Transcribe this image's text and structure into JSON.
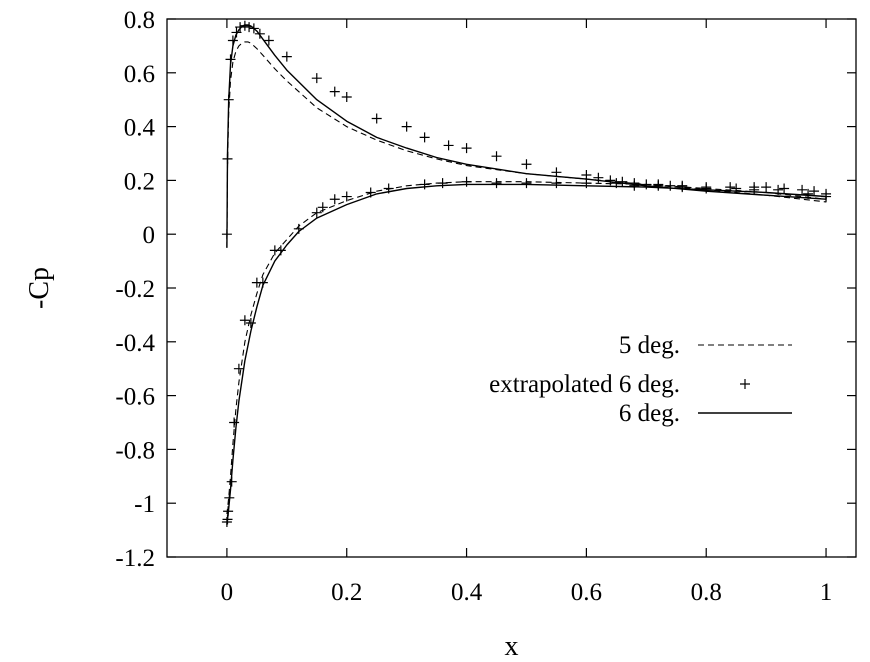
{
  "chart_data": {
    "type": "line",
    "title": "",
    "xlabel": "x",
    "ylabel": "-Cp",
    "xlim": [
      -0.1,
      1.05
    ],
    "ylim": [
      -1.2,
      0.8
    ],
    "xticks": [
      0,
      0.2,
      0.4,
      0.6,
      0.8,
      1
    ],
    "xtick_labels": [
      "0",
      "0.2",
      "0.4",
      "0.6",
      "0.8",
      "1"
    ],
    "yticks": [
      -1.2,
      -1,
      -0.8,
      -0.6,
      -0.4,
      -0.2,
      0,
      0.2,
      0.4,
      0.6,
      0.8
    ],
    "ytick_labels": [
      "-1.2",
      "-1",
      "-0.8",
      "-0.6",
      "-0.4",
      "-0.2",
      "0",
      "0.2",
      "0.4",
      "0.6",
      "0.8"
    ],
    "grid": false,
    "legend_position": "center-right",
    "series": [
      {
        "name": "5 deg.",
        "style": "dashed",
        "x": [
          0.0,
          0.001,
          0.003,
          0.006,
          0.01,
          0.015,
          0.02,
          0.025,
          0.03,
          0.035,
          0.04,
          0.05,
          0.06,
          0.08,
          0.1,
          0.15,
          0.2,
          0.25,
          0.3,
          0.35,
          0.4,
          0.5,
          0.6,
          0.7,
          0.8,
          0.9,
          1.0,
          1.0,
          0.9,
          0.8,
          0.7,
          0.6,
          0.5,
          0.4,
          0.35,
          0.3,
          0.25,
          0.2,
          0.15,
          0.12,
          0.1,
          0.08,
          0.06,
          0.05,
          0.04,
          0.03,
          0.02,
          0.015,
          0.01,
          0.006,
          0.003,
          0.001,
          0.0
        ],
        "y": [
          -0.05,
          0.25,
          0.45,
          0.57,
          0.64,
          0.68,
          0.7,
          0.71,
          0.715,
          0.715,
          0.71,
          0.69,
          0.665,
          0.615,
          0.57,
          0.47,
          0.4,
          0.35,
          0.31,
          0.28,
          0.255,
          0.225,
          0.205,
          0.185,
          0.165,
          0.145,
          0.12,
          0.13,
          0.155,
          0.17,
          0.185,
          0.19,
          0.195,
          0.195,
          0.19,
          0.18,
          0.16,
          0.125,
          0.08,
          0.03,
          -0.02,
          -0.07,
          -0.15,
          -0.22,
          -0.3,
          -0.4,
          -0.55,
          -0.65,
          -0.78,
          -0.9,
          -0.98,
          -1.02,
          -1.04
        ]
      },
      {
        "name": "extrapolated 6 deg.",
        "style": "points",
        "x": [
          0.0,
          0.001,
          0.003,
          0.006,
          0.01,
          0.016,
          0.022,
          0.03,
          0.037,
          0.045,
          0.055,
          0.07,
          0.1,
          0.15,
          0.18,
          0.2,
          0.25,
          0.3,
          0.33,
          0.37,
          0.4,
          0.45,
          0.5,
          0.55,
          0.6,
          0.62,
          0.64,
          0.66,
          0.68,
          0.7,
          0.72,
          0.74,
          0.76,
          0.8,
          0.84,
          0.88,
          0.9,
          0.93,
          0.96,
          0.98,
          1.0,
          1.0,
          0.97,
          0.92,
          0.88,
          0.85,
          0.8,
          0.76,
          0.72,
          0.68,
          0.65,
          0.6,
          0.55,
          0.5,
          0.45,
          0.4,
          0.36,
          0.33,
          0.27,
          0.24,
          0.2,
          0.18,
          0.16,
          0.15,
          0.12,
          0.09,
          0.08,
          0.06,
          0.05,
          0.04,
          0.03,
          0.02,
          0.012,
          0.008,
          0.004,
          0.002,
          0.001,
          0.0
        ],
        "y": [
          0.0,
          0.28,
          0.5,
          0.65,
          0.72,
          0.75,
          0.77,
          0.775,
          0.77,
          0.765,
          0.745,
          0.72,
          0.66,
          0.58,
          0.53,
          0.51,
          0.43,
          0.4,
          0.36,
          0.33,
          0.32,
          0.29,
          0.26,
          0.23,
          0.22,
          0.21,
          0.2,
          0.195,
          0.19,
          0.185,
          0.185,
          0.18,
          0.18,
          0.175,
          0.175,
          0.175,
          0.175,
          0.17,
          0.165,
          0.16,
          0.15,
          0.14,
          0.15,
          0.165,
          0.165,
          0.17,
          0.17,
          0.175,
          0.18,
          0.18,
          0.19,
          0.19,
          0.19,
          0.19,
          0.19,
          0.195,
          0.19,
          0.185,
          0.17,
          0.155,
          0.14,
          0.13,
          0.1,
          0.08,
          0.02,
          -0.06,
          -0.06,
          -0.18,
          -0.18,
          -0.33,
          -0.32,
          -0.5,
          -0.7,
          -0.92,
          -0.98,
          -1.03,
          -1.06,
          -1.07
        ]
      },
      {
        "name": "6 deg.",
        "style": "solid",
        "x": [
          0.0,
          0.001,
          0.003,
          0.006,
          0.01,
          0.015,
          0.02,
          0.025,
          0.03,
          0.035,
          0.04,
          0.05,
          0.06,
          0.08,
          0.1,
          0.15,
          0.2,
          0.25,
          0.3,
          0.35,
          0.4,
          0.5,
          0.6,
          0.7,
          0.8,
          0.9,
          1.0,
          1.0,
          0.9,
          0.8,
          0.7,
          0.6,
          0.5,
          0.4,
          0.35,
          0.3,
          0.25,
          0.2,
          0.15,
          0.12,
          0.1,
          0.08,
          0.06,
          0.05,
          0.04,
          0.03,
          0.02,
          0.015,
          0.01,
          0.006,
          0.003,
          0.001,
          0.0
        ],
        "y": [
          -0.05,
          0.3,
          0.5,
          0.63,
          0.7,
          0.74,
          0.76,
          0.772,
          0.778,
          0.778,
          0.774,
          0.755,
          0.725,
          0.665,
          0.61,
          0.5,
          0.42,
          0.36,
          0.32,
          0.285,
          0.26,
          0.225,
          0.205,
          0.18,
          0.16,
          0.145,
          0.13,
          0.14,
          0.155,
          0.165,
          0.175,
          0.18,
          0.185,
          0.185,
          0.18,
          0.17,
          0.15,
          0.11,
          0.06,
          0.01,
          -0.04,
          -0.1,
          -0.19,
          -0.27,
          -0.36,
          -0.47,
          -0.62,
          -0.72,
          -0.84,
          -0.95,
          -1.02,
          -1.06,
          -1.08
        ]
      }
    ]
  }
}
